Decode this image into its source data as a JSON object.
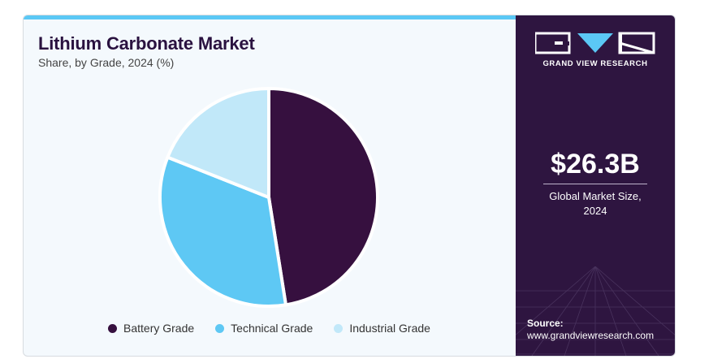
{
  "header": {
    "title": "Lithium Carbonate Market",
    "subtitle": "Share, by Grade, 2024 (%)"
  },
  "brand": {
    "name": "GRAND VIEW RESEARCH"
  },
  "stat": {
    "value": "$26.3B",
    "label_line1": "Global Market Size,",
    "label_line2": "2024"
  },
  "source": {
    "label": "Source:",
    "url": "www.grandviewresearch.com"
  },
  "colors": {
    "battery": "#36103f",
    "technical": "#5ec8f4",
    "industrial": "#c1e8f9",
    "panel": "#2e1540",
    "accent": "#5bc8f5"
  },
  "chart_data": {
    "type": "pie",
    "title": "Lithium Carbonate Market",
    "subtitle": "Share, by Grade, 2024 (%)",
    "categories": [
      "Battery Grade",
      "Technical Grade",
      "Industrial Grade"
    ],
    "values": [
      47.5,
      33.5,
      19.0
    ],
    "legend_position": "bottom"
  }
}
